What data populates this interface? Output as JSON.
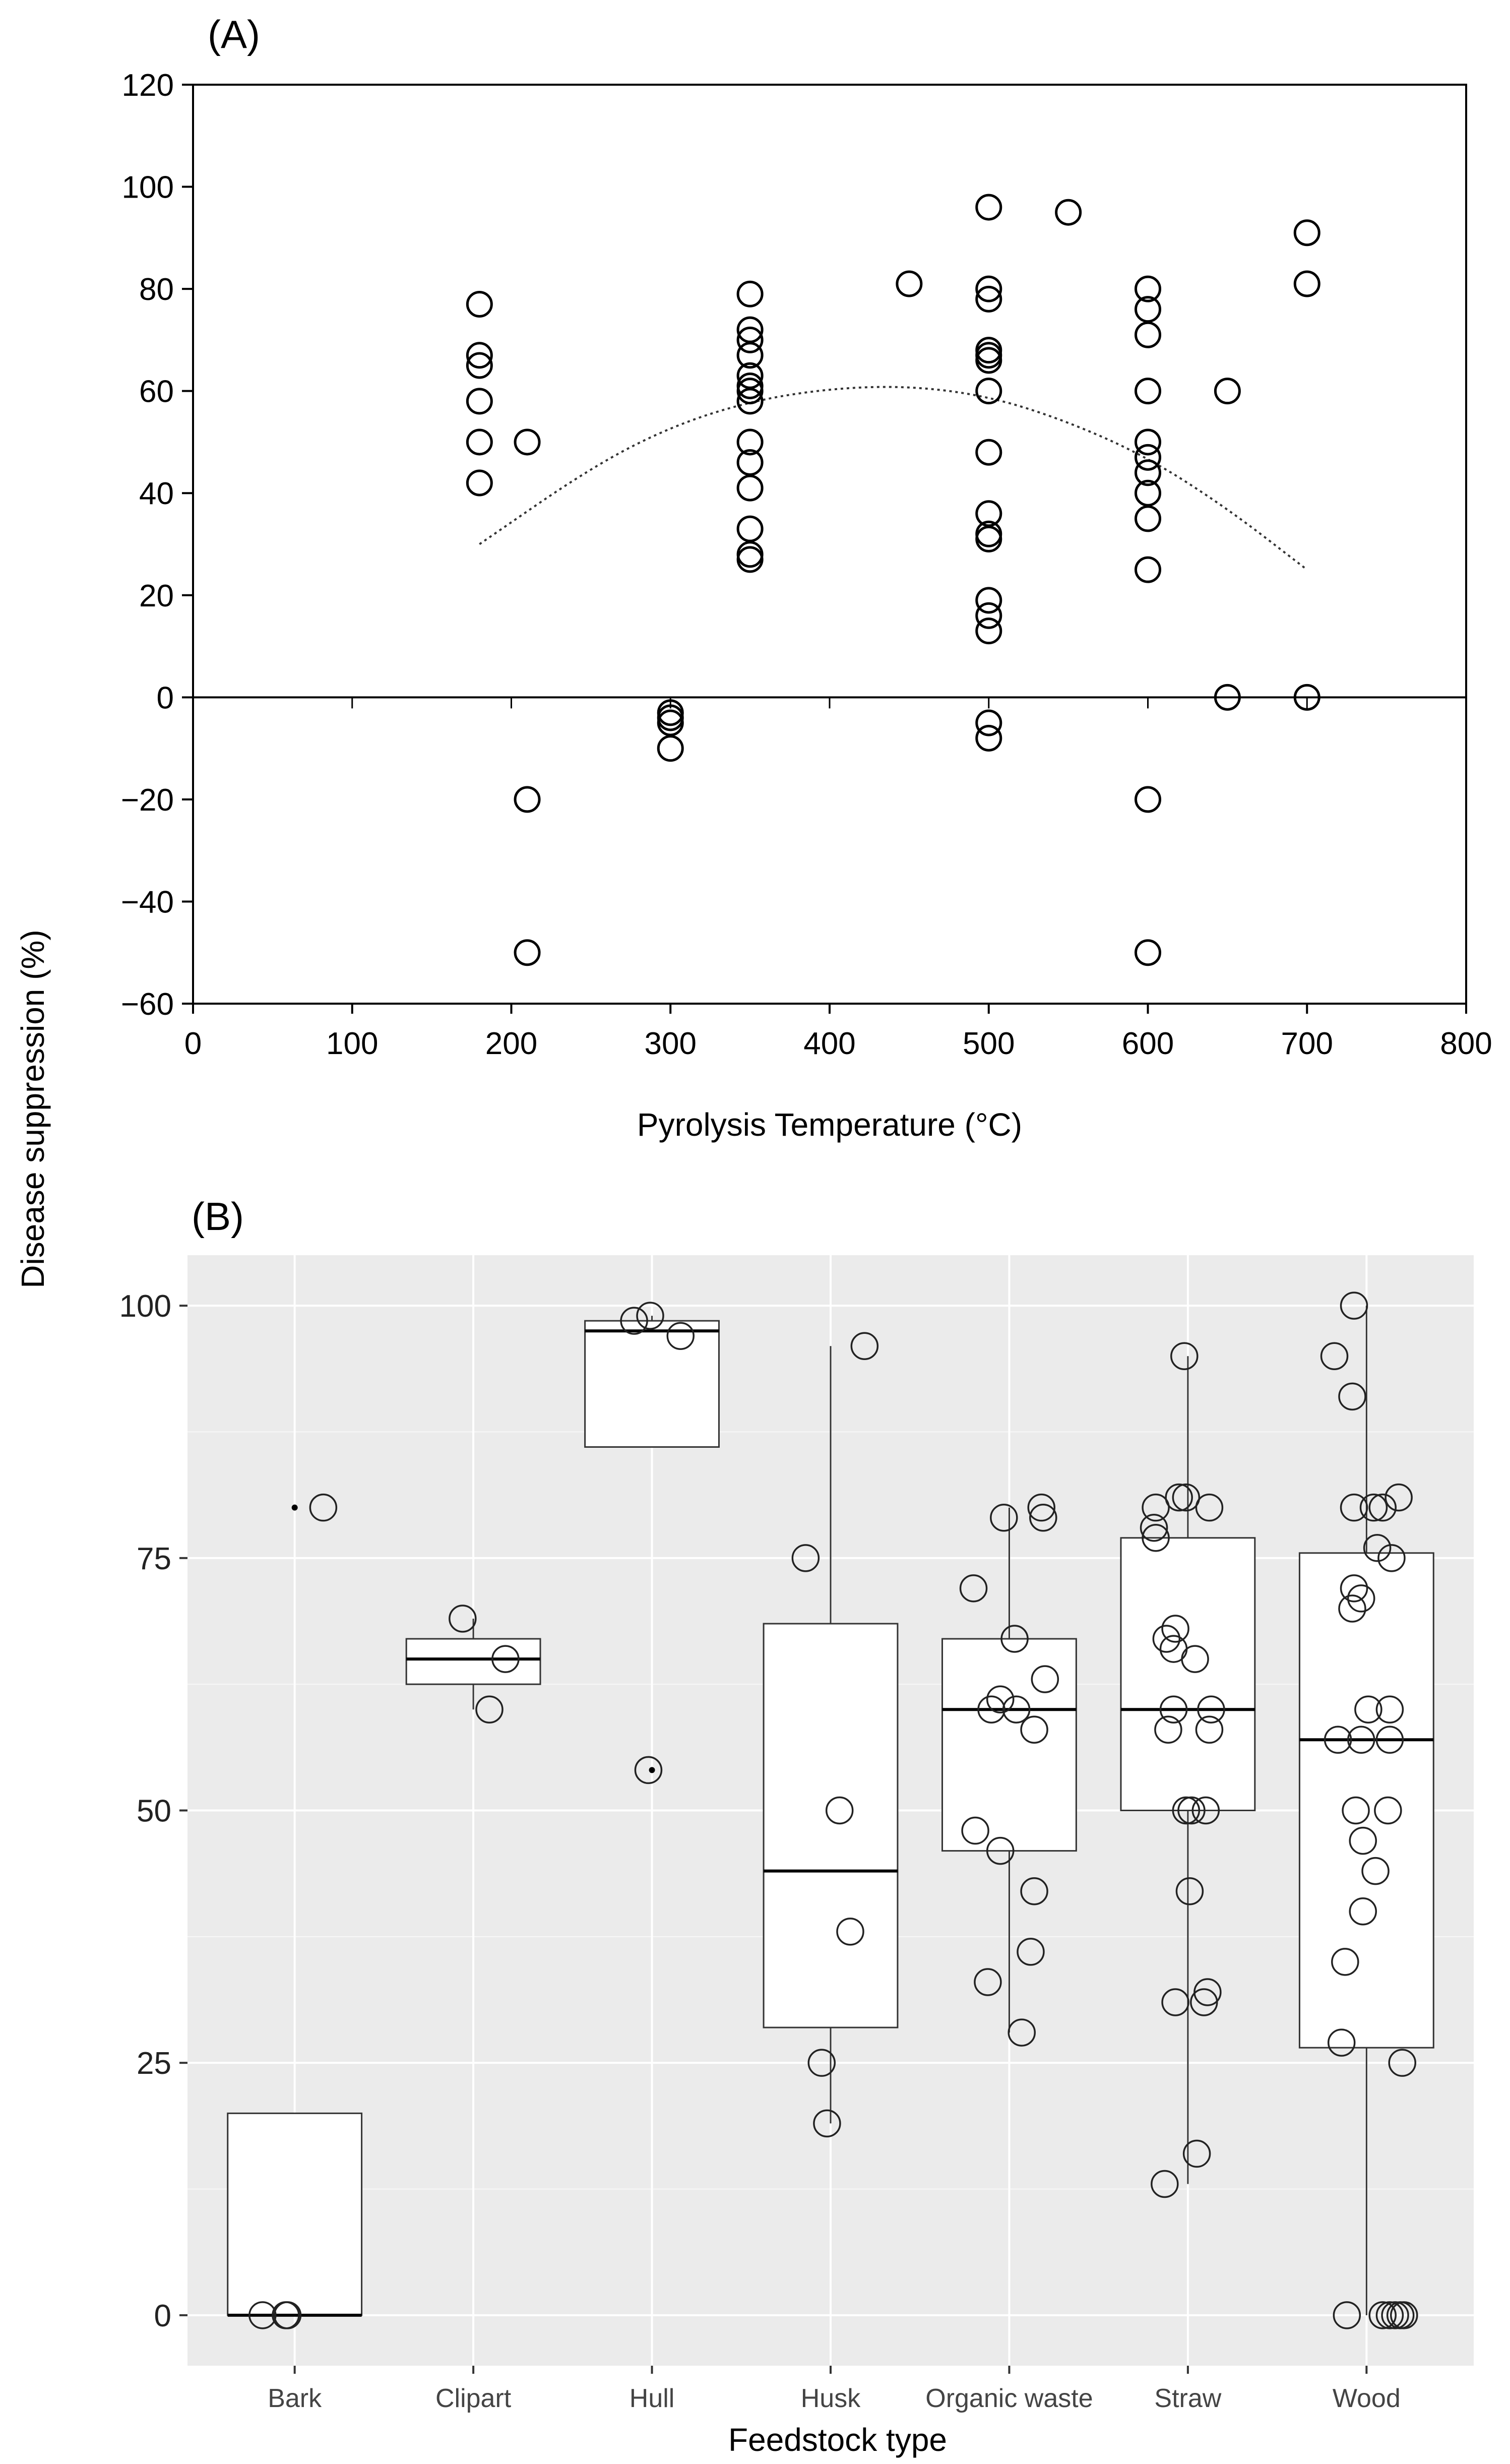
{
  "figure": {
    "shared_ylabel": "Disease suppression (%)"
  },
  "chart_data": [
    {
      "panel_label": "(A)",
      "type": "scatter",
      "title": "",
      "xlabel": "Pyrolysis Temperature (°C)",
      "ylabel": "Disease suppression (%)",
      "xlim": [
        0,
        800
      ],
      "ylim": [
        -60,
        120
      ],
      "xticks": [
        0,
        100,
        200,
        300,
        400,
        500,
        600,
        700,
        800
      ],
      "yticks": [
        -60,
        -40,
        -20,
        0,
        20,
        40,
        60,
        80,
        100,
        120
      ],
      "ytick_labels": [
        "−60",
        "−40",
        "−20",
        "0",
        "20",
        "40",
        "60",
        "80",
        "100",
        "120"
      ],
      "zero_line": true,
      "grid": false,
      "series": [
        {
          "name": "observations",
          "marker": "open-circle",
          "points": [
            [
              180,
              77
            ],
            [
              180,
              67
            ],
            [
              180,
              65
            ],
            [
              180,
              58
            ],
            [
              180,
              50
            ],
            [
              180,
              42
            ],
            [
              210,
              50
            ],
            [
              210,
              -20
            ],
            [
              210,
              -50
            ],
            [
              300,
              -3
            ],
            [
              300,
              -4
            ],
            [
              300,
              -5
            ],
            [
              300,
              -10
            ],
            [
              350,
              79
            ],
            [
              350,
              72
            ],
            [
              350,
              70
            ],
            [
              350,
              67
            ],
            [
              350,
              63
            ],
            [
              350,
              61
            ],
            [
              350,
              60
            ],
            [
              350,
              58
            ],
            [
              350,
              50
            ],
            [
              350,
              46
            ],
            [
              350,
              41
            ],
            [
              350,
              33
            ],
            [
              350,
              28
            ],
            [
              350,
              27
            ],
            [
              450,
              81
            ],
            [
              500,
              96
            ],
            [
              500,
              80
            ],
            [
              500,
              78
            ],
            [
              500,
              68
            ],
            [
              500,
              67
            ],
            [
              500,
              66
            ],
            [
              500,
              60
            ],
            [
              500,
              48
            ],
            [
              500,
              36
            ],
            [
              500,
              32
            ],
            [
              500,
              31
            ],
            [
              500,
              19
            ],
            [
              500,
              16
            ],
            [
              500,
              13
            ],
            [
              500,
              -5
            ],
            [
              500,
              -8
            ],
            [
              550,
              95
            ],
            [
              600,
              80
            ],
            [
              600,
              76
            ],
            [
              600,
              71
            ],
            [
              600,
              60
            ],
            [
              600,
              50
            ],
            [
              600,
              47
            ],
            [
              600,
              44
            ],
            [
              600,
              40
            ],
            [
              600,
              35
            ],
            [
              600,
              25
            ],
            [
              600,
              -20
            ],
            [
              600,
              -50
            ],
            [
              650,
              60
            ],
            [
              650,
              0
            ],
            [
              700,
              91
            ],
            [
              700,
              81
            ],
            [
              700,
              0
            ]
          ]
        }
      ],
      "trend_line": {
        "name": "quadratic fit",
        "style": "dotted",
        "points": [
          [
            180,
            30
          ],
          [
            250,
            45
          ],
          [
            300,
            53
          ],
          [
            350,
            58
          ],
          [
            400,
            60.5
          ],
          [
            450,
            61
          ],
          [
            500,
            59
          ],
          [
            550,
            54
          ],
          [
            600,
            47
          ],
          [
            650,
            37
          ],
          [
            700,
            25
          ]
        ]
      }
    },
    {
      "panel_label": "(B)",
      "type": "box",
      "title": "",
      "xlabel": "Feedstock type",
      "ylabel": "Disease suppression (%)",
      "ylim": [
        -5,
        105
      ],
      "yticks": [
        0,
        25,
        50,
        75,
        100
      ],
      "background": "#ebebeb",
      "grid": true,
      "categories": [
        "Bark",
        "Clipart",
        "Hull",
        "Husk",
        "Organic waste",
        "Straw",
        "Wood"
      ],
      "boxes": [
        {
          "category": "Bark",
          "q1": 0,
          "median": 0,
          "q3": 20,
          "whisker_low": 0,
          "whisker_high": 20,
          "outliers": [
            80
          ]
        },
        {
          "category": "Clipart",
          "q1": 62.5,
          "median": 65,
          "q3": 67,
          "whisker_low": 60,
          "whisker_high": 69,
          "outliers": []
        },
        {
          "category": "Hull",
          "q1": 86,
          "median": 97.5,
          "q3": 98.5,
          "whisker_low": 86,
          "whisker_high": 99,
          "outliers": [
            54
          ]
        },
        {
          "category": "Husk",
          "q1": 28.5,
          "median": 44,
          "q3": 68.5,
          "whisker_low": 19,
          "whisker_high": 96,
          "outliers": []
        },
        {
          "category": "Organic waste",
          "q1": 46,
          "median": 60,
          "q3": 67,
          "whisker_low": 28,
          "whisker_high": 80,
          "outliers": []
        },
        {
          "category": "Straw",
          "q1": 50,
          "median": 60,
          "q3": 77,
          "whisker_low": 13,
          "whisker_high": 95,
          "outliers": []
        },
        {
          "category": "Wood",
          "q1": 26.5,
          "median": 57,
          "q3": 75.5,
          "whisker_low": 0,
          "whisker_high": 100,
          "outliers": []
        }
      ],
      "jitter_points": [
        {
          "category": "Bark",
          "offset": -0.18,
          "value": 0
        },
        {
          "category": "Bark",
          "offset": -0.05,
          "value": 0
        },
        {
          "category": "Bark",
          "offset": -0.04,
          "value": 0
        },
        {
          "category": "Bark",
          "offset": 0.16,
          "value": 80
        },
        {
          "category": "Clipart",
          "offset": -0.06,
          "value": 69
        },
        {
          "category": "Clipart",
          "offset": 0.18,
          "value": 65
        },
        {
          "category": "Clipart",
          "offset": 0.09,
          "value": 60
        },
        {
          "category": "Hull",
          "offset": -0.1,
          "value": 98.5
        },
        {
          "category": "Hull",
          "offset": -0.01,
          "value": 99
        },
        {
          "category": "Hull",
          "offset": 0.16,
          "value": 97
        },
        {
          "category": "Hull",
          "offset": -0.02,
          "value": 54
        },
        {
          "category": "Husk",
          "offset": 0.19,
          "value": 96
        },
        {
          "category": "Husk",
          "offset": -0.14,
          "value": 75
        },
        {
          "category": "Husk",
          "offset": 0.05,
          "value": 50
        },
        {
          "category": "Husk",
          "offset": 0.11,
          "value": 38
        },
        {
          "category": "Husk",
          "offset": -0.05,
          "value": 25
        },
        {
          "category": "Husk",
          "offset": -0.02,
          "value": 19
        },
        {
          "category": "Organic waste",
          "offset": 0.18,
          "value": 80
        },
        {
          "category": "Organic waste",
          "offset": 0.19,
          "value": 79
        },
        {
          "category": "Organic waste",
          "offset": -0.03,
          "value": 79
        },
        {
          "category": "Organic waste",
          "offset": -0.2,
          "value": 72
        },
        {
          "category": "Organic waste",
          "offset": 0.03,
          "value": 67
        },
        {
          "category": "Organic waste",
          "offset": 0.2,
          "value": 63
        },
        {
          "category": "Organic waste",
          "offset": -0.05,
          "value": 61
        },
        {
          "category": "Organic waste",
          "offset": -0.1,
          "value": 60
        },
        {
          "category": "Organic waste",
          "offset": 0.04,
          "value": 60
        },
        {
          "category": "Organic waste",
          "offset": 0.14,
          "value": 58
        },
        {
          "category": "Organic waste",
          "offset": -0.19,
          "value": 48
        },
        {
          "category": "Organic waste",
          "offset": -0.05,
          "value": 46
        },
        {
          "category": "Organic waste",
          "offset": 0.14,
          "value": 42
        },
        {
          "category": "Organic waste",
          "offset": 0.12,
          "value": 36
        },
        {
          "category": "Organic waste",
          "offset": -0.12,
          "value": 33
        },
        {
          "category": "Organic waste",
          "offset": 0.07,
          "value": 28
        },
        {
          "category": "Straw",
          "offset": -0.02,
          "value": 95
        },
        {
          "category": "Straw",
          "offset": -0.05,
          "value": 81
        },
        {
          "category": "Straw",
          "offset": -0.01,
          "value": 81
        },
        {
          "category": "Straw",
          "offset": -0.18,
          "value": 80
        },
        {
          "category": "Straw",
          "offset": 0.12,
          "value": 80
        },
        {
          "category": "Straw",
          "offset": -0.19,
          "value": 78
        },
        {
          "category": "Straw",
          "offset": -0.18,
          "value": 77
        },
        {
          "category": "Straw",
          "offset": -0.07,
          "value": 68
        },
        {
          "category": "Straw",
          "offset": -0.12,
          "value": 67
        },
        {
          "category": "Straw",
          "offset": -0.08,
          "value": 66
        },
        {
          "category": "Straw",
          "offset": 0.04,
          "value": 65
        },
        {
          "category": "Straw",
          "offset": -0.08,
          "value": 60
        },
        {
          "category": "Straw",
          "offset": 0.13,
          "value": 60
        },
        {
          "category": "Straw",
          "offset": -0.11,
          "value": 58
        },
        {
          "category": "Straw",
          "offset": 0.12,
          "value": 58
        },
        {
          "category": "Straw",
          "offset": -0.01,
          "value": 50
        },
        {
          "category": "Straw",
          "offset": 0.02,
          "value": 50
        },
        {
          "category": "Straw",
          "offset": 0.1,
          "value": 50
        },
        {
          "category": "Straw",
          "offset": 0.01,
          "value": 42
        },
        {
          "category": "Straw",
          "offset": 0.11,
          "value": 32
        },
        {
          "category": "Straw",
          "offset": -0.07,
          "value": 31
        },
        {
          "category": "Straw",
          "offset": 0.09,
          "value": 31
        },
        {
          "category": "Straw",
          "offset": 0.05,
          "value": 16
        },
        {
          "category": "Straw",
          "offset": -0.13,
          "value": 13
        },
        {
          "category": "Wood",
          "offset": -0.07,
          "value": 100
        },
        {
          "category": "Wood",
          "offset": -0.18,
          "value": 95
        },
        {
          "category": "Wood",
          "offset": -0.08,
          "value": 91
        },
        {
          "category": "Wood",
          "offset": 0.18,
          "value": 81
        },
        {
          "category": "Wood",
          "offset": -0.07,
          "value": 80
        },
        {
          "category": "Wood",
          "offset": 0.04,
          "value": 80
        },
        {
          "category": "Wood",
          "offset": 0.09,
          "value": 80
        },
        {
          "category": "Wood",
          "offset": 0.06,
          "value": 76
        },
        {
          "category": "Wood",
          "offset": 0.14,
          "value": 75
        },
        {
          "category": "Wood",
          "offset": -0.07,
          "value": 72
        },
        {
          "category": "Wood",
          "offset": -0.03,
          "value": 71
        },
        {
          "category": "Wood",
          "offset": -0.08,
          "value": 70
        },
        {
          "category": "Wood",
          "offset": 0.01,
          "value": 60
        },
        {
          "category": "Wood",
          "offset": 0.13,
          "value": 60
        },
        {
          "category": "Wood",
          "offset": -0.16,
          "value": 57
        },
        {
          "category": "Wood",
          "offset": -0.03,
          "value": 57
        },
        {
          "category": "Wood",
          "offset": 0.13,
          "value": 57
        },
        {
          "category": "Wood",
          "offset": -0.06,
          "value": 50
        },
        {
          "category": "Wood",
          "offset": 0.12,
          "value": 50
        },
        {
          "category": "Wood",
          "offset": -0.02,
          "value": 47
        },
        {
          "category": "Wood",
          "offset": 0.05,
          "value": 44
        },
        {
          "category": "Wood",
          "offset": -0.02,
          "value": 40
        },
        {
          "category": "Wood",
          "offset": -0.12,
          "value": 35
        },
        {
          "category": "Wood",
          "offset": -0.14,
          "value": 27
        },
        {
          "category": "Wood",
          "offset": 0.2,
          "value": 25
        },
        {
          "category": "Wood",
          "offset": -0.11,
          "value": 0
        },
        {
          "category": "Wood",
          "offset": 0.09,
          "value": 0
        },
        {
          "category": "Wood",
          "offset": 0.13,
          "value": 0
        },
        {
          "category": "Wood",
          "offset": 0.16,
          "value": 0
        },
        {
          "category": "Wood",
          "offset": 0.19,
          "value": 0
        },
        {
          "category": "Wood",
          "offset": 0.21,
          "value": 0
        }
      ]
    }
  ]
}
